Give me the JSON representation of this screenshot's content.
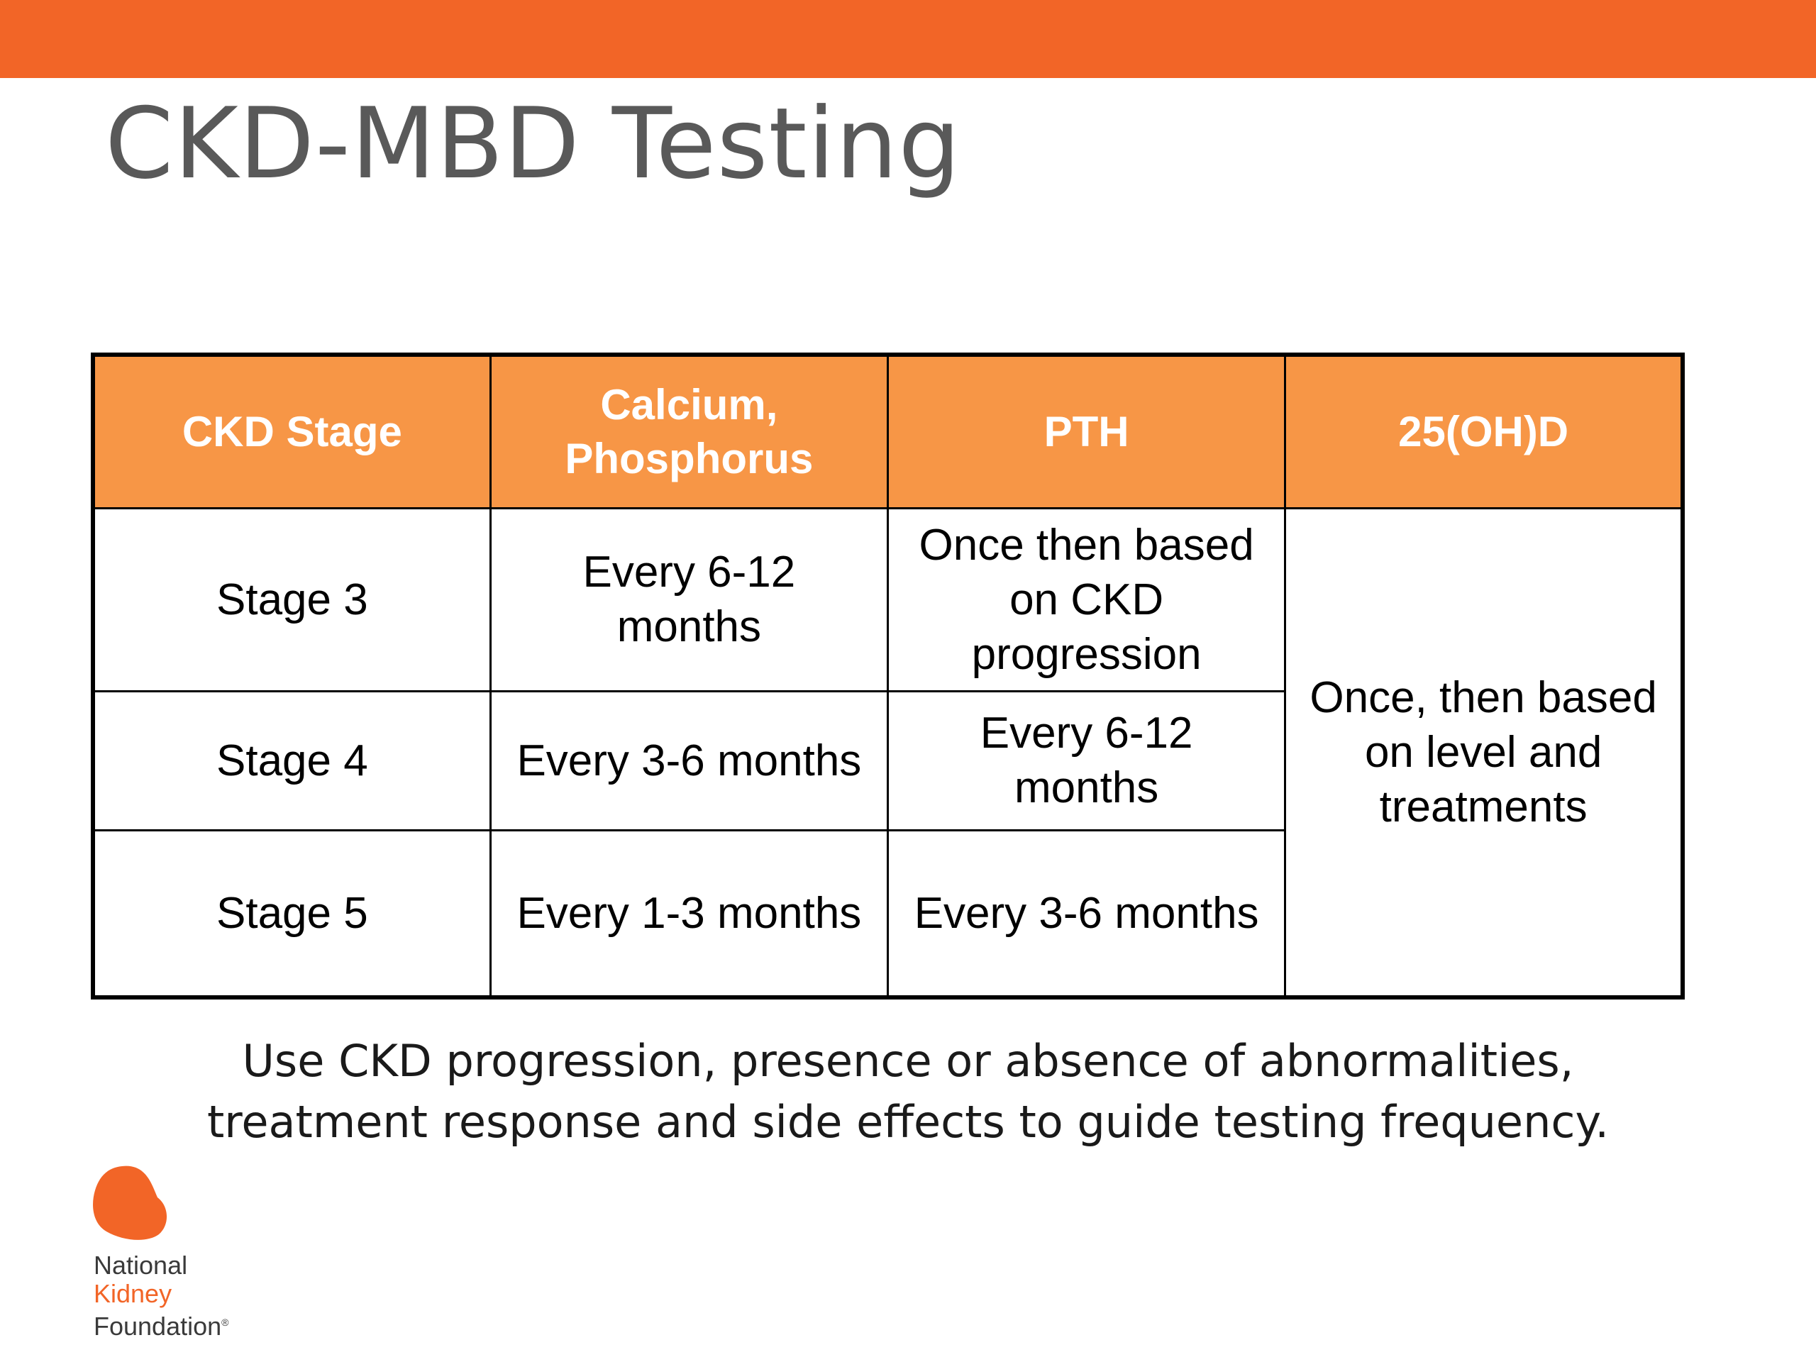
{
  "header": {
    "title": "CKD-MBD Testing"
  },
  "table": {
    "headers": [
      "CKD Stage",
      "Calcium, Phosphorus",
      "PTH",
      "25(OH)D"
    ],
    "rows": [
      {
        "stage": "Stage 3",
        "calcium_phosphorus": "Every 6-12 months",
        "pth": "Once then based on CKD progression"
      },
      {
        "stage": "Stage 4",
        "calcium_phosphorus": "Every 3-6 months",
        "pth": "Every 6-12 months"
      },
      {
        "stage": "Stage 5",
        "calcium_phosphorus": "Every 1-3 months",
        "pth": "Every 3-6 months"
      }
    ],
    "vitamin_d_all_stages": "Once, then based on level and treatments"
  },
  "footer": {
    "note_line1": "Use CKD progression, presence or absence of abnormalities,",
    "note_line2": "treatment response and side effects to guide testing frequency."
  },
  "logo": {
    "line1": "National",
    "line2": "Kidney",
    "line3": "Foundation",
    "mark": "®",
    "icon": "kidney-icon",
    "color": "#f26527"
  },
  "colors": {
    "accent_bar": "#f26527",
    "table_header": "#f79646",
    "title_text": "#595959"
  }
}
